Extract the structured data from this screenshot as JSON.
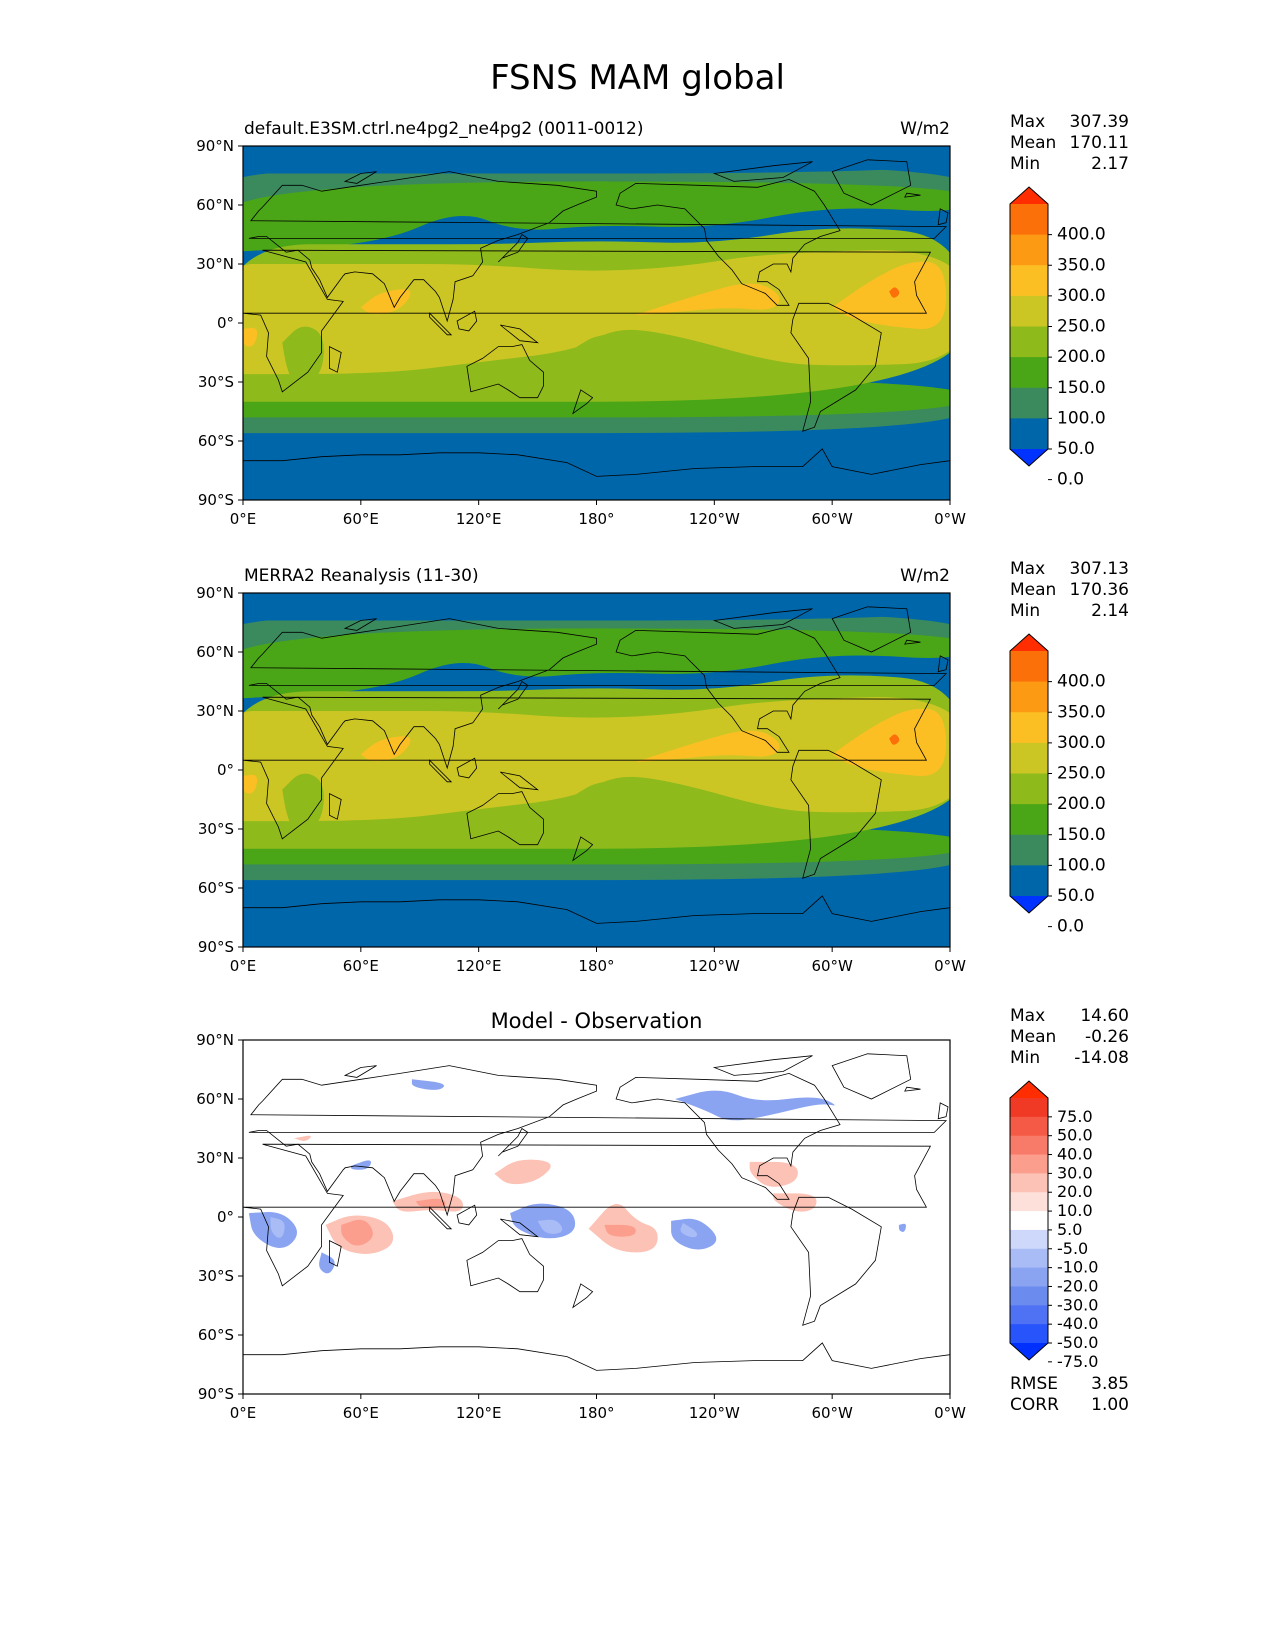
{
  "figure": {
    "title": "FSNS MAM global"
  },
  "panels": [
    {
      "id": "test",
      "left_title": "default.E3SM.ctrl.ne4pg2_ne4pg2 (0011-0012)",
      "center_title": "",
      "units": "W/m2",
      "stats": [
        {
          "label": "Max",
          "value": "307.39"
        },
        {
          "label": "Mean",
          "value": "170.11"
        },
        {
          "label": "Min",
          "value": "2.17"
        }
      ],
      "colorbar": {
        "ticks": [
          "400.0",
          "350.0",
          "300.0",
          "250.0",
          "200.0",
          "150.0",
          "100.0",
          "50.0",
          "0.0"
        ],
        "colors": [
          "#0033ff",
          "#0066aa",
          "#3a8a5e",
          "#4aa616",
          "#8fba1c",
          "#cbc624",
          "#fbbf24",
          "#fc9a14",
          "#fb7009",
          "#ff2d00"
        ]
      },
      "extra_stats": []
    },
    {
      "id": "reference",
      "left_title": "MERRA2 Reanalysis (11-30)",
      "center_title": "",
      "units": "W/m2",
      "stats": [
        {
          "label": "Max",
          "value": "307.13"
        },
        {
          "label": "Mean",
          "value": "170.36"
        },
        {
          "label": "Min",
          "value": "2.14"
        }
      ],
      "colorbar": {
        "ticks": [
          "400.0",
          "350.0",
          "300.0",
          "250.0",
          "200.0",
          "150.0",
          "100.0",
          "50.0",
          "0.0"
        ],
        "colors": [
          "#0033ff",
          "#0066aa",
          "#3a8a5e",
          "#4aa616",
          "#8fba1c",
          "#cbc624",
          "#fbbf24",
          "#fc9a14",
          "#fb7009",
          "#ff2d00"
        ]
      },
      "extra_stats": []
    },
    {
      "id": "difference",
      "left_title": "",
      "center_title": "Model - Observation",
      "units": "",
      "stats": [
        {
          "label": "Max",
          "value": "14.60"
        },
        {
          "label": "Mean",
          "value": "-0.26"
        },
        {
          "label": "Min",
          "value": "-14.08"
        }
      ],
      "colorbar": {
        "ticks": [
          "75.0",
          "50.0",
          "40.0",
          "30.0",
          "20.0",
          "10.0",
          "5.0",
          "-5.0",
          "-10.0",
          "-20.0",
          "-30.0",
          "-40.0",
          "-50.0",
          "-75.0"
        ],
        "colors": [
          "#0030ff",
          "#2854fb",
          "#4f72f4",
          "#6b8bef",
          "#8aa4f2",
          "#a9bcf6",
          "#cdd8fa",
          "#ffffff",
          "#fde0da",
          "#fcc2b5",
          "#fb9e8e",
          "#f87a68",
          "#f45a46",
          "#f03a25",
          "#ff2d00"
        ]
      },
      "extra_stats": [
        {
          "label": "RMSE",
          "value": "3.85"
        },
        {
          "label": "CORR",
          "value": "1.00"
        }
      ]
    }
  ],
  "axes": {
    "lat_ticks": [
      "90°N",
      "60°N",
      "30°N",
      "0°",
      "30°S",
      "60°S",
      "90°S"
    ],
    "lon_ticks": [
      "0°E",
      "60°E",
      "120°E",
      "180°",
      "120°W",
      "60°W",
      "0°W"
    ]
  }
}
